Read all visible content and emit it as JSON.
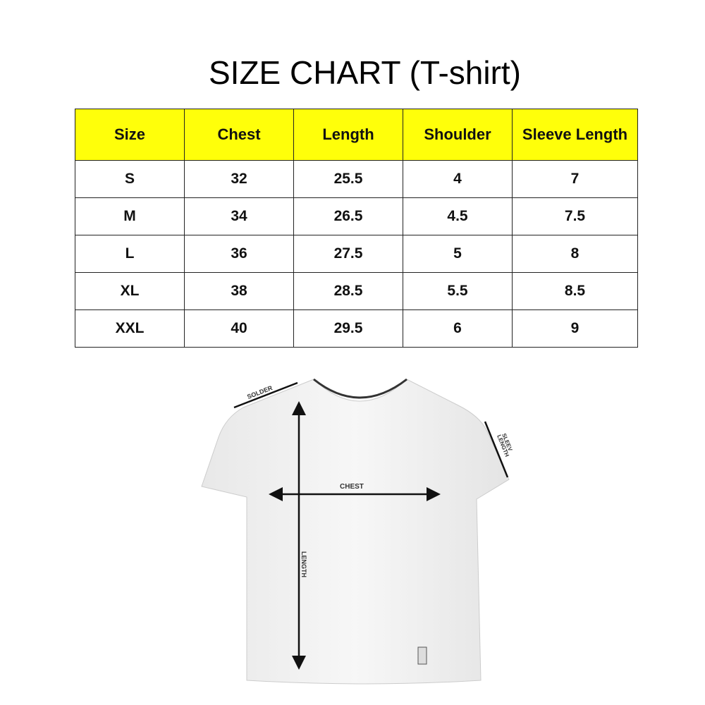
{
  "title": "SIZE CHART (T-shirt)",
  "chart_data": {
    "type": "table",
    "columns": [
      "Size",
      "Chest",
      "Length",
      "Shoulder",
      "Sleeve Length"
    ],
    "rows": [
      [
        "S",
        "32",
        "25.5",
        "4",
        "7"
      ],
      [
        "M",
        "34",
        "26.5",
        "4.5",
        "7.5"
      ],
      [
        "L",
        "36",
        "27.5",
        "5",
        "8"
      ],
      [
        "XL",
        "38",
        "28.5",
        "5.5",
        "8.5"
      ],
      [
        "XXL",
        "40",
        "29.5",
        "6",
        "9"
      ]
    ],
    "header_color": "#ffff0a"
  },
  "diagram": {
    "labels": {
      "shoulder": "SOLDER",
      "sleeve_line1": "SLEEV",
      "sleeve_line2": "LENGTH",
      "chest": "CHEST",
      "length": "LENGTH"
    }
  }
}
